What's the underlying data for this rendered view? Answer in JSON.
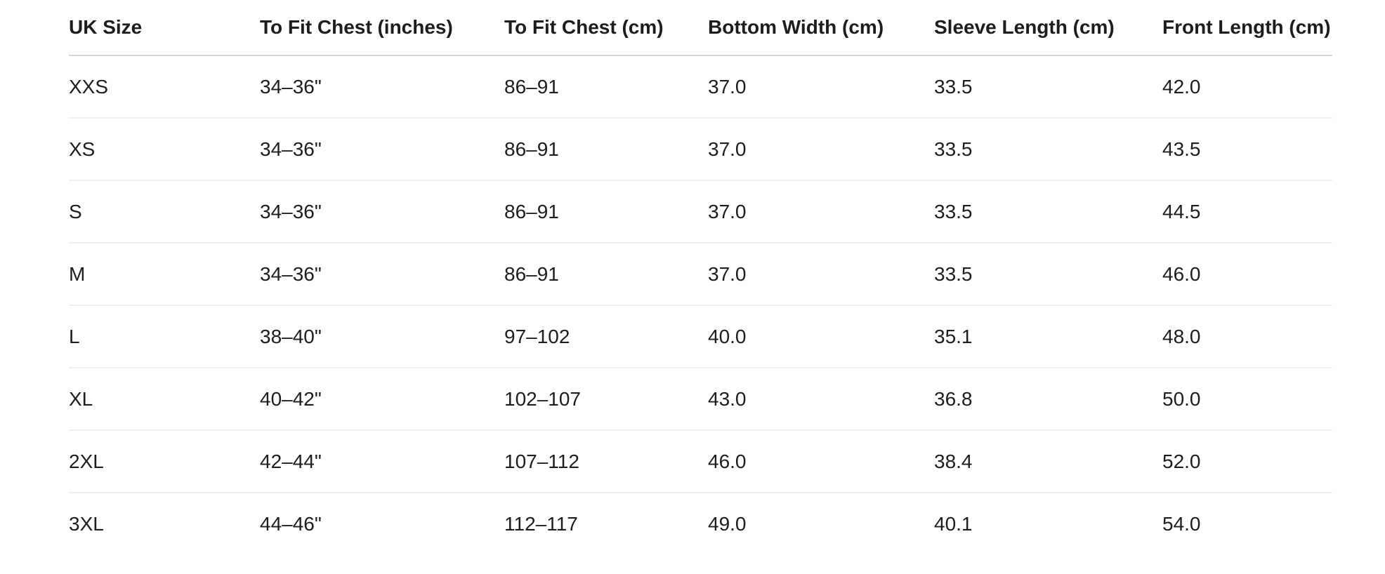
{
  "table": {
    "columns": [
      "UK Size",
      "To Fit Chest (inches)",
      "To Fit Chest (cm)",
      "Bottom Width (cm)",
      "Sleeve Length (cm)",
      "Front Length (cm)"
    ],
    "rows": [
      [
        "XXS",
        "34–36\"",
        "86–91",
        "37.0",
        "33.5",
        "42.0"
      ],
      [
        "XS",
        "34–36\"",
        "86–91",
        "37.0",
        "33.5",
        "43.5"
      ],
      [
        "S",
        "34–36\"",
        "86–91",
        "37.0",
        "33.5",
        "44.5"
      ],
      [
        "M",
        "34–36\"",
        "86–91",
        "37.0",
        "33.5",
        "46.0"
      ],
      [
        "L",
        "38–40\"",
        "97–102",
        "40.0",
        "35.1",
        "48.0"
      ],
      [
        "XL",
        "40–42\"",
        "102–107",
        "43.0",
        "36.8",
        "50.0"
      ],
      [
        "2XL",
        "42–44\"",
        "107–112",
        "46.0",
        "38.4",
        "52.0"
      ],
      [
        "3XL",
        "44–46\"",
        "112–117",
        "49.0",
        "40.1",
        "54.0"
      ]
    ]
  },
  "colors": {
    "text": "#1d1d1f",
    "header_border": "#d7d7d7",
    "row_border": "#f0f0f0",
    "background": "#ffffff"
  }
}
